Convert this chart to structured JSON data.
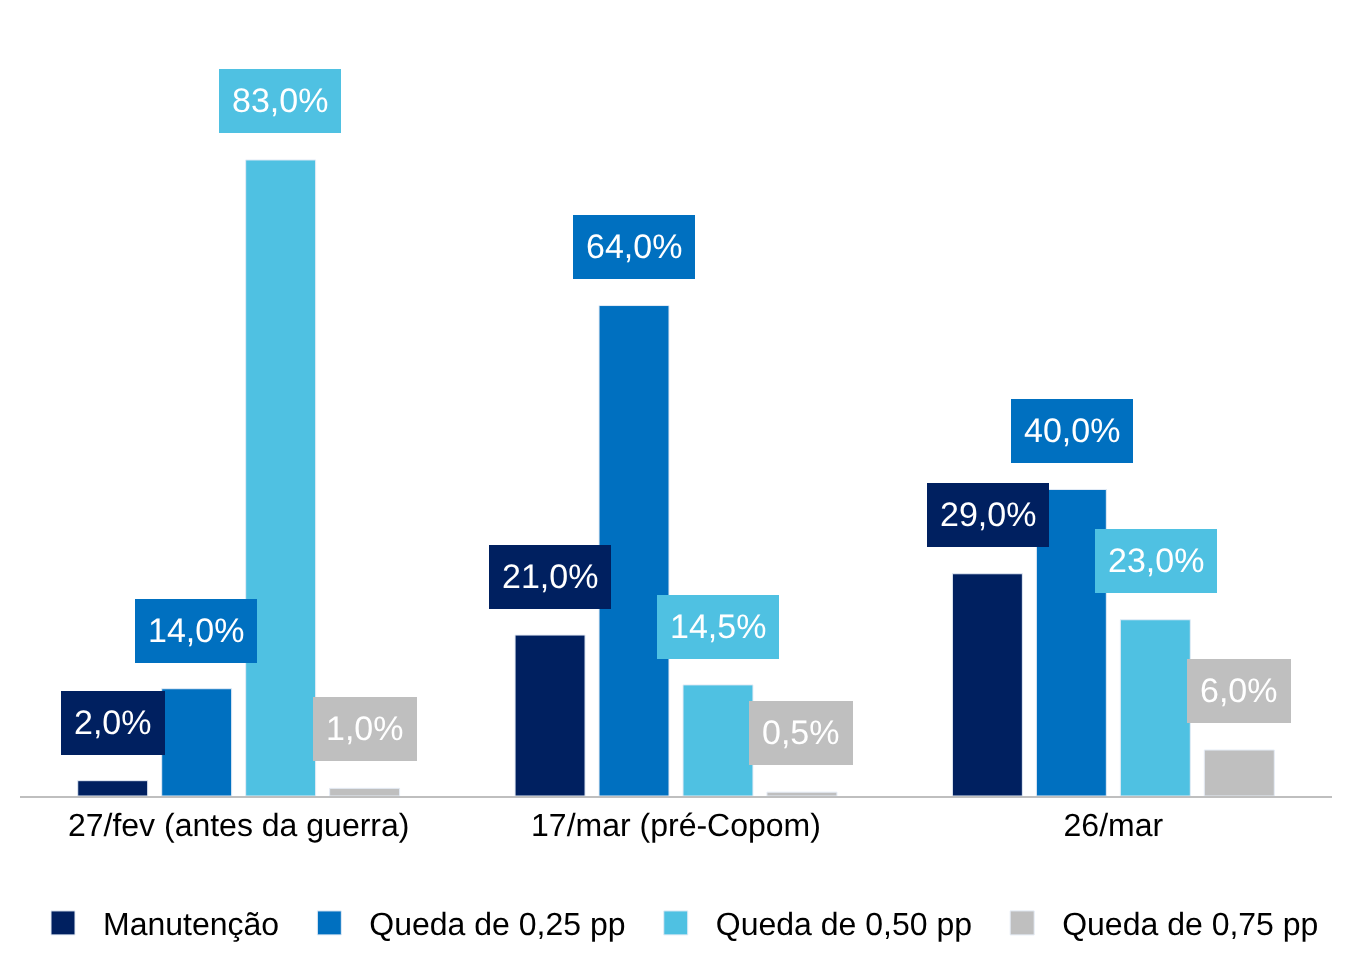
{
  "chart_data": {
    "type": "bar",
    "categories": [
      "27/fev (antes da guerra)",
      "17/mar (pré-Copom)",
      "26/mar"
    ],
    "series": [
      {
        "name": "Manutenção",
        "color": "#002060",
        "values": [
          2,
          21,
          29
        ],
        "value_labels": [
          "2,0%",
          "21,0%",
          "29,0%"
        ]
      },
      {
        "name": "Queda de 0,25 pp",
        "color": "#0070c0",
        "values": [
          14,
          64,
          40
        ],
        "value_labels": [
          "14,0%",
          "64,0%",
          "40,0%"
        ]
      },
      {
        "name": "Queda de 0,50 pp",
        "color": "#4fc1e2",
        "values": [
          83,
          14.5,
          23
        ],
        "value_labels": [
          "83,0%",
          "14,5%",
          "23,0%"
        ]
      },
      {
        "name": "Queda de 0,75 pp",
        "color": "#bfbfbf",
        "values": [
          1,
          0.5,
          6
        ],
        "value_labels": [
          "1,0%",
          "0,5%",
          "6,0%"
        ]
      }
    ],
    "legend": "bottom"
  }
}
